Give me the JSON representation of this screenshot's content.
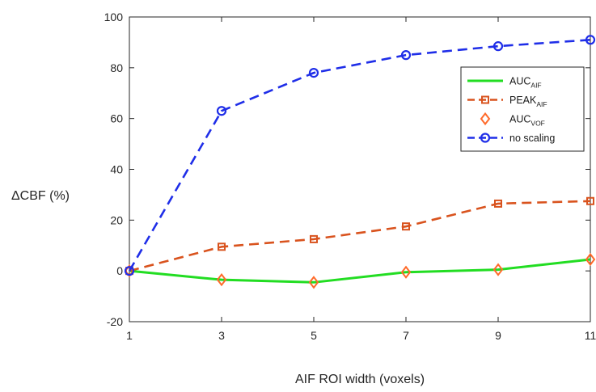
{
  "chart_data": {
    "type": "line",
    "xlabel": "AIF ROI width (voxels)",
    "ylabel": "ΔCBF (%)",
    "x": [
      1,
      3,
      5,
      7,
      9,
      11
    ],
    "xticks": [
      "1",
      "3",
      "5",
      "7",
      "9",
      "11"
    ],
    "yticks": [
      "-20",
      "0",
      "20",
      "40",
      "60",
      "80",
      "100"
    ],
    "xlim": [
      1,
      11
    ],
    "ylim": [
      -20,
      100
    ],
    "grid": false,
    "legend_position": "top-right",
    "series": [
      {
        "name": "AUC",
        "subscript": "AIF",
        "color": "#22dd22",
        "style": "solid",
        "marker": "none",
        "values": [
          0,
          -3.5,
          -4.5,
          -0.5,
          0.5,
          4.5
        ]
      },
      {
        "name": "PEAK",
        "subscript": "AIF",
        "color": "#d9531e",
        "style": "dashed",
        "marker": "square",
        "values": [
          0,
          9.5,
          12.5,
          17.5,
          26.5,
          27.5
        ]
      },
      {
        "name": "AUC",
        "subscript": "VOF",
        "color": "#ff6a2a",
        "style": "none",
        "marker": "diamond",
        "values": [
          0,
          -3.5,
          -4.5,
          -0.5,
          0.5,
          4.5
        ]
      },
      {
        "name": "no scaling",
        "subscript": "",
        "color": "#1f2ee8",
        "style": "dashed",
        "marker": "circle",
        "values": [
          0,
          63,
          78,
          85,
          88.5,
          91
        ]
      }
    ]
  }
}
